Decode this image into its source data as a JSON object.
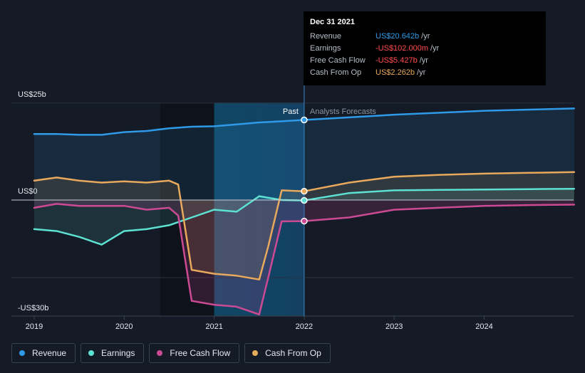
{
  "chart_data": {
    "type": "area",
    "y_axis": {
      "top_label": "US$25b",
      "zero_label": "US$0",
      "bottom_label": "-US$30b",
      "ylim": [
        -30,
        25
      ]
    },
    "x_axis": {
      "ticks": [
        "2019",
        "2020",
        "2021",
        "2022",
        "2023",
        "2024"
      ],
      "xlim": [
        2018.8,
        2025.0
      ]
    },
    "past_label": "Past",
    "forecast_label": "Analysts Forecasts",
    "divider_x": 2022.0,
    "series": [
      {
        "name": "Revenue",
        "color": "#2f9ae8",
        "x": [
          2019.0,
          2019.25,
          2019.5,
          2019.75,
          2020.0,
          2020.25,
          2020.5,
          2020.75,
          2021.0,
          2021.25,
          2021.5,
          2021.75,
          2022.0,
          2022.5,
          2023.0,
          2023.5,
          2024.0,
          2024.5,
          2025.0
        ],
        "y": [
          17.0,
          17.0,
          16.8,
          16.8,
          17.5,
          17.8,
          18.5,
          18.9,
          19.0,
          19.5,
          20.0,
          20.3,
          20.64,
          21.3,
          22.0,
          22.5,
          23.0,
          23.3,
          23.6
        ]
      },
      {
        "name": "Earnings",
        "color": "#5ce1d2",
        "x": [
          2019.0,
          2019.25,
          2019.5,
          2019.75,
          2020.0,
          2020.25,
          2020.5,
          2020.75,
          2021.0,
          2021.25,
          2021.5,
          2021.75,
          2022.0,
          2022.5,
          2023.0,
          2023.5,
          2024.0,
          2024.5,
          2025.0
        ],
        "y": [
          -7.5,
          -8.0,
          -9.5,
          -11.5,
          -8.0,
          -7.5,
          -6.5,
          -4.5,
          -2.5,
          -3.0,
          1.0,
          0.0,
          -0.102,
          1.8,
          2.5,
          2.6,
          2.7,
          2.8,
          2.9
        ]
      },
      {
        "name": "Free Cash Flow",
        "color": "#cc4a93",
        "x": [
          2019.0,
          2019.25,
          2019.5,
          2019.75,
          2020.0,
          2020.25,
          2020.5,
          2020.6,
          2020.75,
          2021.0,
          2021.25,
          2021.5,
          2021.6,
          2021.75,
          2022.0,
          2022.5,
          2023.0,
          2023.5,
          2024.0,
          2024.5,
          2025.0
        ],
        "y": [
          -2.0,
          -1.0,
          -1.5,
          -1.5,
          -1.5,
          -2.5,
          -2.0,
          -4.0,
          -26.0,
          -27.0,
          -27.5,
          -29.5,
          -20.0,
          -5.5,
          -5.427,
          -4.5,
          -2.5,
          -2.0,
          -1.5,
          -1.3,
          -1.2
        ]
      },
      {
        "name": "Cash From Op",
        "color": "#e8a95c",
        "x": [
          2019.0,
          2019.25,
          2019.5,
          2019.75,
          2020.0,
          2020.25,
          2020.5,
          2020.6,
          2020.75,
          2021.0,
          2021.25,
          2021.5,
          2021.6,
          2021.75,
          2022.0,
          2022.5,
          2023.0,
          2023.5,
          2024.0,
          2024.5,
          2025.0
        ],
        "y": [
          5.0,
          5.8,
          5.0,
          4.5,
          4.8,
          4.5,
          5.0,
          4.0,
          -18.0,
          -19.0,
          -19.5,
          -20.5,
          -12.0,
          2.5,
          2.262,
          4.5,
          6.0,
          6.5,
          6.8,
          7.0,
          7.2
        ]
      }
    ],
    "tooltip": {
      "date": "Dec 31 2021",
      "rows": [
        {
          "label": "Revenue",
          "value": "US$20.642b",
          "unit": "/yr",
          "color": "#2f9ae8"
        },
        {
          "label": "Earnings",
          "value": "-US$102.000m",
          "unit": "/yr",
          "color": "#ff4b4b"
        },
        {
          "label": "Free Cash Flow",
          "value": "-US$5.427b",
          "unit": "/yr",
          "color": "#ff4b4b"
        },
        {
          "label": "Cash From Op",
          "value": "US$2.262b",
          "unit": "/yr",
          "color": "#e8a95c"
        }
      ]
    },
    "legend": [
      {
        "label": "Revenue",
        "color": "#2f9ae8"
      },
      {
        "label": "Earnings",
        "color": "#5ce1d2"
      },
      {
        "label": "Free Cash Flow",
        "color": "#cc4a93"
      },
      {
        "label": "Cash From Op",
        "color": "#e8a95c"
      }
    ]
  }
}
